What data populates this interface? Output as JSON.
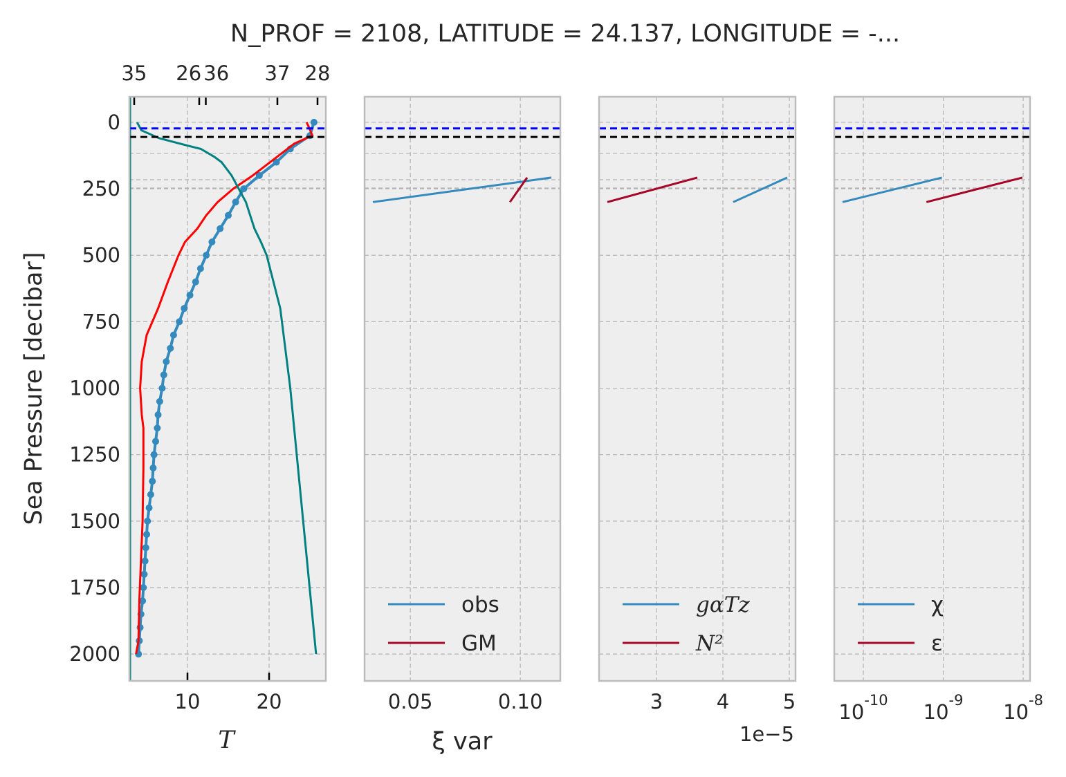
{
  "title": "N_PROF = 2108, LATITUDE = 24.137, LONGITUDE = -...",
  "ylabel": "Sea Pressure [decibar]",
  "colors": {
    "obs": "#348abd",
    "gm": "#a60628",
    "red": "#ff0000",
    "teal": "#008080",
    "ml_blue": "#0000ff",
    "ml_black": "#000000",
    "bg": "#eeeeee",
    "grid": "#b2b2b2",
    "spine": "#bcbcbc"
  },
  "yaxis": {
    "range": [
      2101,
      -96
    ],
    "ticks": [
      0,
      250,
      500,
      750,
      1000,
      1250,
      1500,
      1750,
      2000
    ],
    "tick_labels": [
      "0",
      "250",
      "500",
      "750",
      "1000",
      "1250",
      "1500",
      "1750",
      "2000"
    ],
    "extra_grid": [
      117,
      216,
      247
    ]
  },
  "hlines": [
    {
      "name": "blue-dashed",
      "p": 23,
      "color": "#0000ff"
    },
    {
      "name": "black-dashed",
      "p": 55,
      "color": "#000000"
    }
  ],
  "chart_data": [
    {
      "type": "line",
      "xlabel": "T",
      "xlim": [
        2.88,
        26.95
      ],
      "xticks": [
        10,
        20
      ],
      "xtick_labels": [
        "10",
        "20"
      ],
      "top_axis_salinity": {
        "lim_ref": [
          35,
          36,
          37
        ],
        "ticks": [
          35,
          36,
          37
        ],
        "tick_labels": [
          "35",
          "36",
          "37"
        ]
      },
      "top_axis_density": {
        "ticks": [
          26,
          28
        ],
        "tick_labels": [
          "26",
          "28"
        ]
      },
      "series": [
        {
          "name": "T obs",
          "color": "#348abd",
          "markers": true,
          "p": [
            0,
            50,
            100,
            150,
            200,
            250,
            300,
            350,
            400,
            450,
            500,
            550,
            600,
            650,
            700,
            750,
            800,
            850,
            900,
            950,
            1000,
            1050,
            1100,
            1150,
            1200,
            1250,
            1300,
            1350,
            1400,
            1450,
            1500,
            1550,
            1600,
            1650,
            1700,
            1750,
            1800,
            1850,
            1900,
            1950,
            2000
          ],
          "T": [
            25.5,
            25.0,
            22.6,
            20.9,
            18.8,
            16.9,
            15.9,
            15.0,
            14.0,
            13.0,
            12.3,
            11.6,
            11.0,
            10.3,
            9.6,
            9.0,
            8.3,
            7.9,
            7.4,
            7.1,
            6.9,
            6.6,
            6.4,
            6.3,
            6.1,
            5.9,
            5.8,
            5.7,
            5.5,
            5.3,
            5.1,
            5.0,
            4.9,
            4.8,
            4.7,
            4.6,
            4.5,
            4.3,
            4.2,
            4.1,
            4.0
          ]
        },
        {
          "name": "T red",
          "color": "#ff0000",
          "markers": false,
          "p": [
            0,
            20,
            50,
            80,
            200,
            250,
            300,
            350,
            400,
            450,
            500,
            600,
            700,
            800,
            900,
            1000,
            1100,
            1150,
            1300,
            1500,
            1800,
            1950,
            2000
          ],
          "T": [
            24.6,
            24.9,
            25.3,
            23.1,
            18.0,
            15.6,
            13.7,
            12.3,
            11.2,
            9.7,
            8.9,
            7.6,
            6.4,
            5.0,
            4.4,
            4.2,
            4.4,
            4.6,
            4.6,
            4.5,
            4.1,
            4.0,
            3.7
          ]
        },
        {
          "name": "salinity",
          "color": "#008080",
          "axis": "salinity",
          "p": [
            0,
            30,
            60,
            90,
            100,
            130,
            150,
            200,
            250,
            300,
            400,
            450,
            500,
            700,
            1000,
            1500,
            2000
          ],
          "S": [
            35.04,
            35.1,
            35.35,
            35.78,
            35.93,
            36.12,
            36.22,
            36.36,
            36.46,
            36.56,
            36.68,
            36.77,
            36.85,
            37.04,
            37.18,
            37.36,
            37.54
          ]
        }
      ]
    },
    {
      "type": "line",
      "xlabel": "ξ var",
      "xlim": [
        0.0292,
        0.1182
      ],
      "xticks": [
        0.05,
        0.1
      ],
      "xtick_labels": [
        "0.05",
        "0.10"
      ],
      "legend": {
        "placement": "lower-left",
        "entries": [
          "obs",
          "GM"
        ]
      },
      "series": [
        {
          "name": "obs",
          "color": "#348abd",
          "x": [
            0.033,
            0.1141
          ],
          "p": [
            300,
            208
          ]
        },
        {
          "name": "GM",
          "color": "#a60628",
          "x": [
            0.0953,
            0.1031
          ],
          "p": [
            300,
            208
          ]
        }
      ]
    },
    {
      "type": "line",
      "xlabel": "",
      "offset_label": "1e−5",
      "xlim": [
        2.135,
        5.094
      ],
      "xticks": [
        3,
        4,
        5
      ],
      "xtick_labels": [
        "3",
        "4",
        "5"
      ],
      "legend": {
        "placement": "lower-left",
        "entries": [
          "gαTz",
          "N²"
        ]
      },
      "series": [
        {
          "name": "gαTz",
          "color": "#348abd",
          "x": [
            4.156,
            4.969
          ],
          "p": [
            300,
            208
          ]
        },
        {
          "name": "N²",
          "color": "#a60628",
          "x": [
            2.26,
            3.615
          ],
          "p": [
            300,
            208
          ]
        }
      ]
    },
    {
      "type": "line",
      "xscale": "log",
      "xlabel": "",
      "xlim_log10": [
        -10.364,
        -7.914
      ],
      "xticks_log10": [
        -10,
        -9,
        -8
      ],
      "xtick_labels": [
        "-10",
        "-9",
        "-8"
      ],
      "xtick_base": "10",
      "legend": {
        "placement": "lower-left",
        "entries": [
          "χ",
          "ε"
        ]
      },
      "series": [
        {
          "name": "χ",
          "color": "#348abd",
          "x_log10": [
            -10.26,
            -9.017
          ],
          "p": [
            300,
            208
          ]
        },
        {
          "name": "ε",
          "color": "#a60628",
          "x_log10": [
            -9.21,
            -8.01
          ],
          "p": [
            300,
            208
          ]
        }
      ]
    }
  ]
}
